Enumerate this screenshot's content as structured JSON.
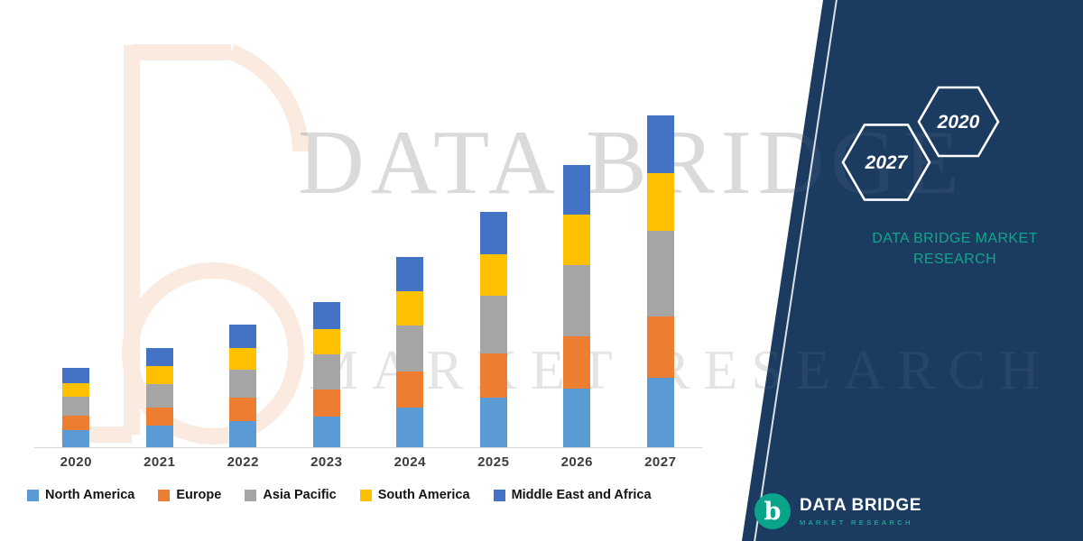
{
  "brand": {
    "title_line1": "DATA BRIDGE MARKET",
    "title_line2": "RESEARCH",
    "hex_front": "2027",
    "hex_back": "2020",
    "logo_text": "DATA BRIDGE",
    "logo_subtext": "MARKET RESEARCH",
    "logo_glyph": "b",
    "accent_teal": "#13a58c",
    "navy": "#1c3b60"
  },
  "watermark": {
    "line1": "DATA BRIDGE",
    "line2": "MARKET RESEARCH"
  },
  "chart_data": {
    "type": "bar",
    "stacked": true,
    "title": "",
    "xlabel": "",
    "ylabel": "",
    "grid": false,
    "axis_visible": false,
    "legend_position": "bottom",
    "ylim": [
      0,
      450
    ],
    "categories": [
      "2020",
      "2021",
      "2022",
      "2023",
      "2024",
      "2025",
      "2026",
      "2027"
    ],
    "series": [
      {
        "name": "North America",
        "color": "#5B9BD5",
        "values": [
          22,
          28,
          34,
          40,
          52,
          64,
          76,
          90
        ]
      },
      {
        "name": "Europe",
        "color": "#ED7D31",
        "values": [
          19,
          24,
          30,
          35,
          46,
          57,
          68,
          80
        ]
      },
      {
        "name": "Asia Pacific",
        "color": "#A5A5A5",
        "values": [
          24,
          30,
          37,
          45,
          60,
          75,
          92,
          110
        ]
      },
      {
        "name": "South America",
        "color": "#FFC000",
        "values": [
          18,
          23,
          28,
          33,
          44,
          54,
          65,
          75
        ]
      },
      {
        "name": "Middle East and Africa",
        "color": "#4472C4",
        "values": [
          20,
          24,
          30,
          35,
          45,
          55,
          65,
          75
        ]
      }
    ]
  }
}
